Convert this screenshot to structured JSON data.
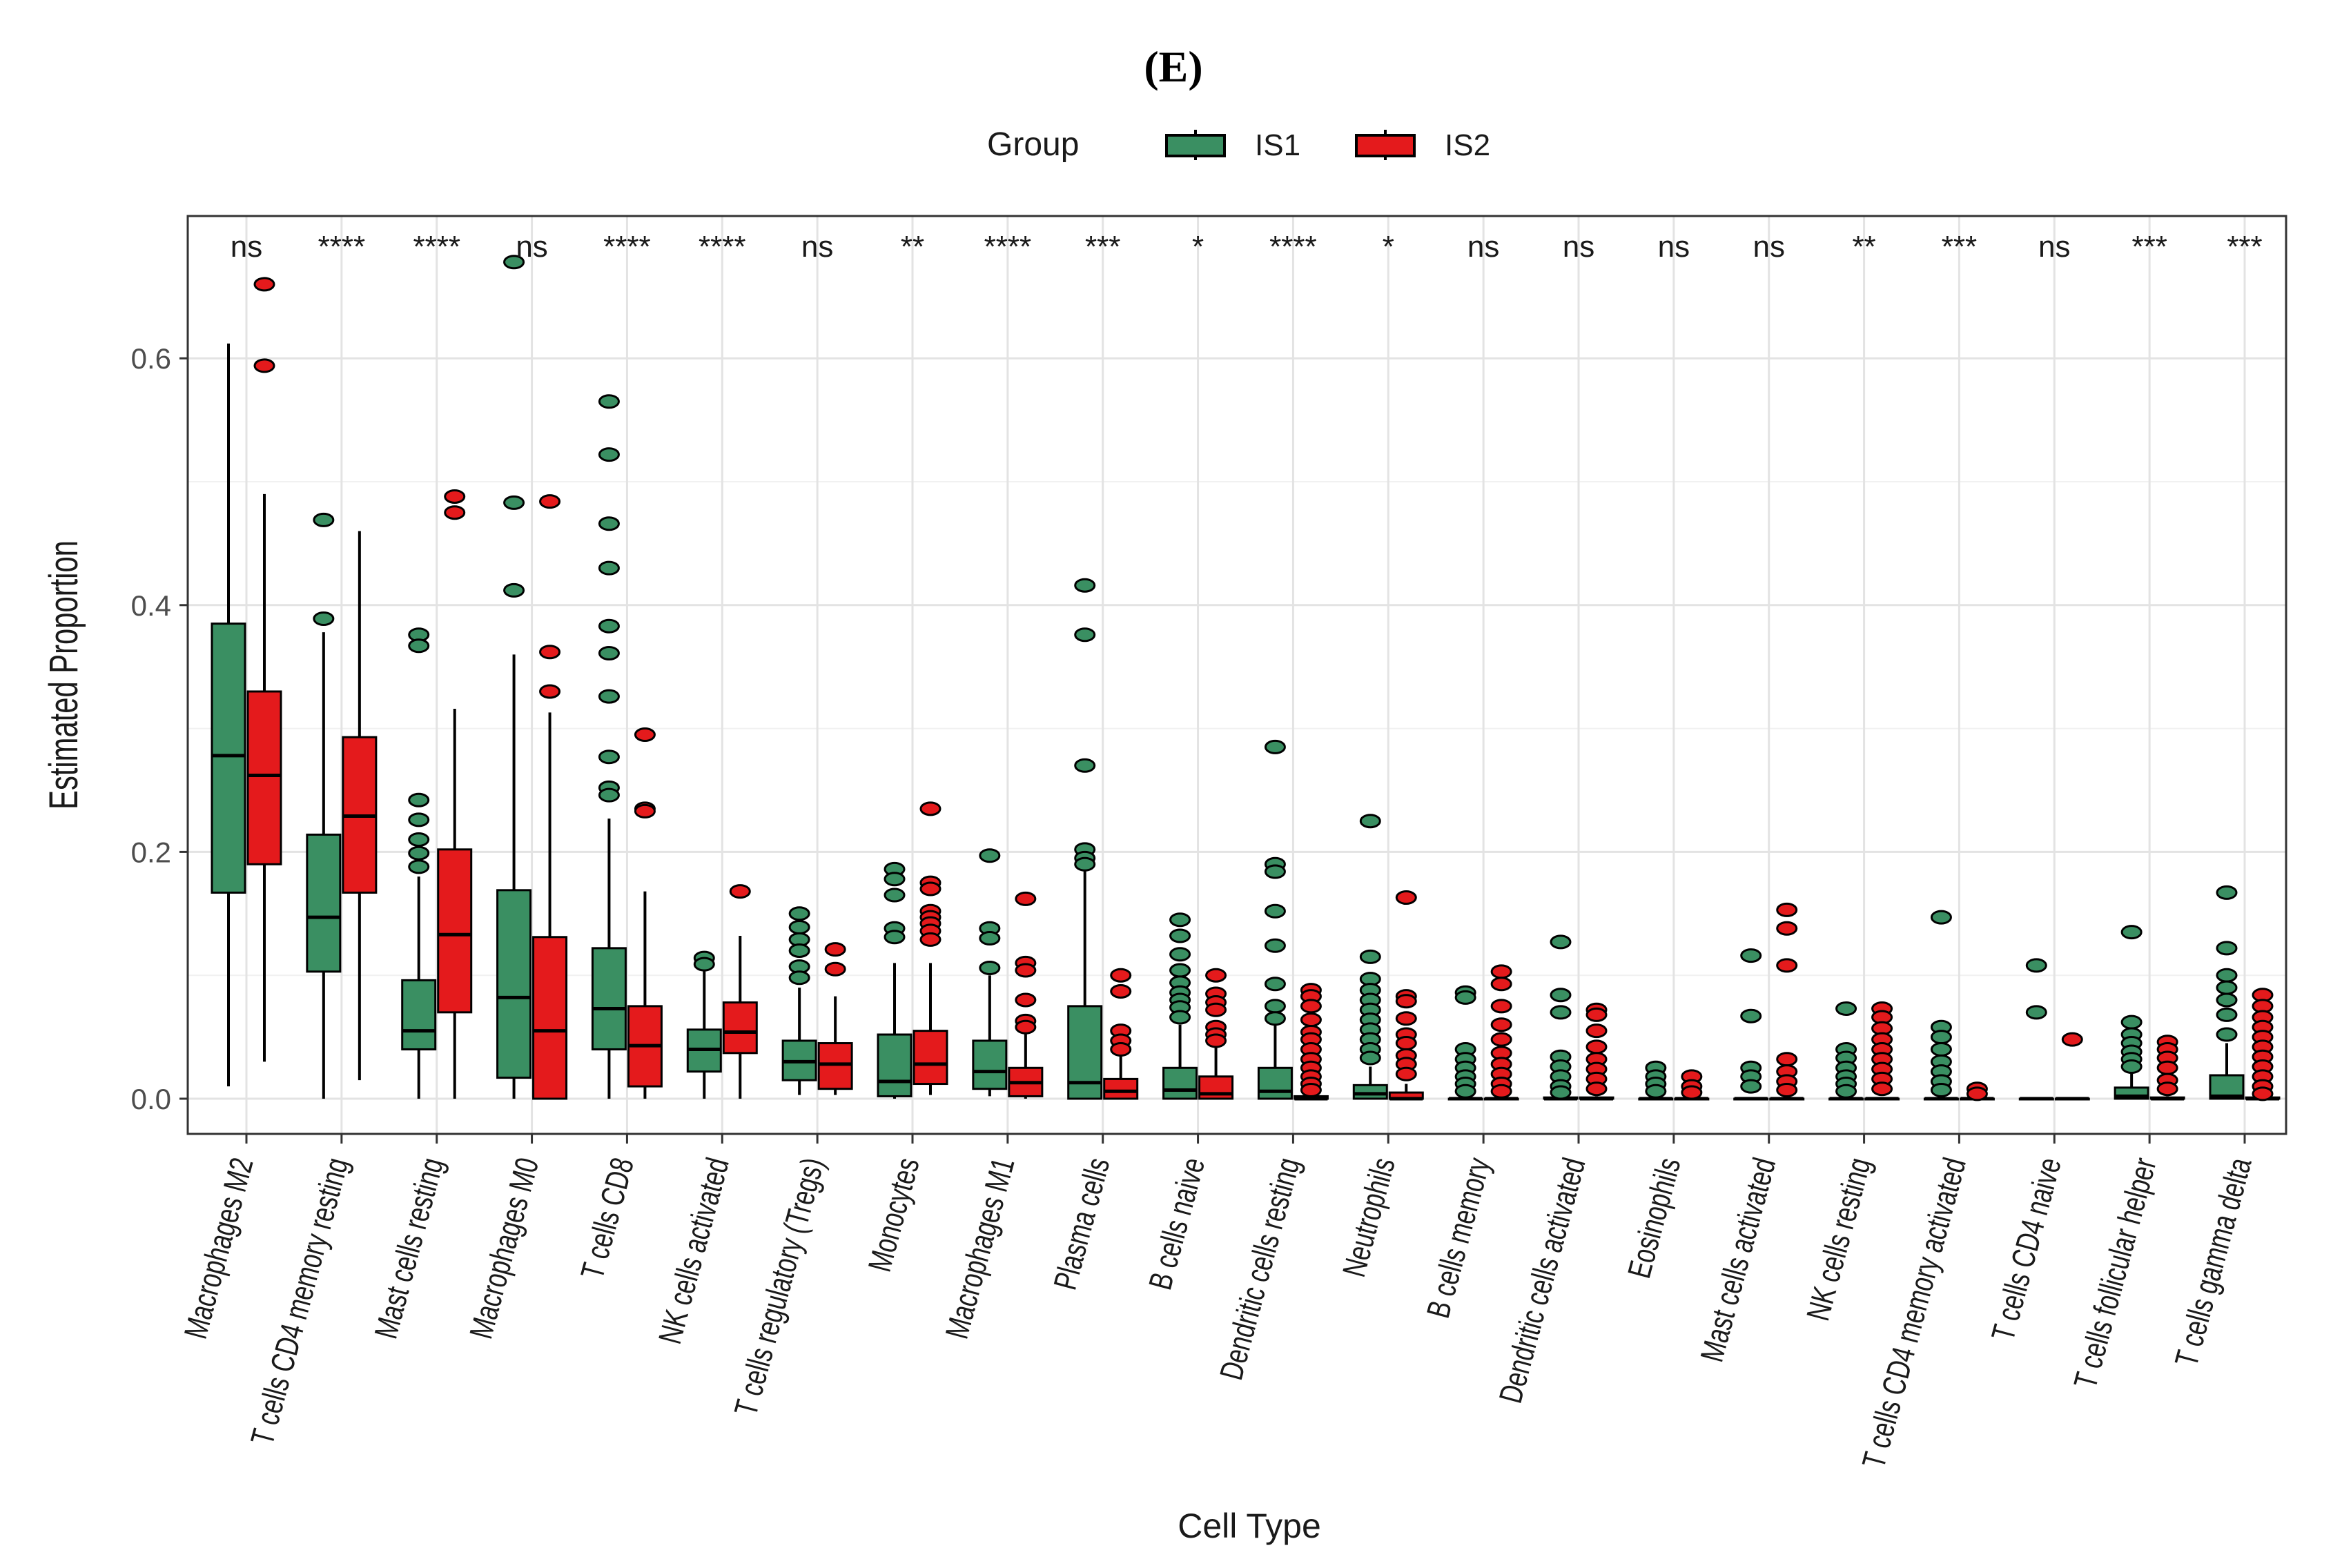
{
  "panel_label": "(E)",
  "legend": {
    "title": "Group",
    "items": [
      {
        "label": "IS1",
        "color": "#3a8f62"
      },
      {
        "label": "IS2",
        "color": "#e41a1c"
      }
    ]
  },
  "chart_data": {
    "type": "boxplot",
    "title": "",
    "xlabel": "Cell Type",
    "ylabel": "Estimated Proportion",
    "ylim": [
      -0.035,
      0.7
    ],
    "yticks": [
      0.0,
      0.2,
      0.4,
      0.6
    ],
    "ytick_labels": [
      "0.0",
      "0.2",
      "0.4",
      "0.6"
    ],
    "grid": true,
    "legend_position": "top",
    "series_names": [
      "IS1",
      "IS2"
    ],
    "categories": [
      {
        "name": "Macrophages M2",
        "sig": "ns",
        "IS1": {
          "whisker_low": 0.01,
          "q1": 0.167,
          "median": 0.278,
          "q3": 0.385,
          "whisker_high": 0.612,
          "outliers": []
        },
        "IS2": {
          "whisker_low": 0.03,
          "q1": 0.19,
          "median": 0.262,
          "q3": 0.33,
          "whisker_high": 0.49,
          "outliers": [
            0.66,
            0.594
          ]
        }
      },
      {
        "name": "T cells CD4 memory resting",
        "sig": "****",
        "IS1": {
          "whisker_low": 0.0,
          "q1": 0.103,
          "median": 0.147,
          "q3": 0.214,
          "whisker_high": 0.378,
          "outliers": [
            0.469,
            0.389
          ]
        },
        "IS2": {
          "whisker_low": 0.015,
          "q1": 0.167,
          "median": 0.229,
          "q3": 0.293,
          "whisker_high": 0.46,
          "outliers": []
        }
      },
      {
        "name": "Mast cells resting",
        "sig": "****",
        "IS1": {
          "whisker_low": 0.0,
          "q1": 0.04,
          "median": 0.055,
          "q3": 0.096,
          "whisker_high": 0.18,
          "outliers": [
            0.376,
            0.367,
            0.242,
            0.226,
            0.21,
            0.199,
            0.188
          ]
        },
        "IS2": {
          "whisker_low": 0.0,
          "q1": 0.07,
          "median": 0.133,
          "q3": 0.202,
          "whisker_high": 0.316,
          "outliers": [
            0.488,
            0.475
          ]
        }
      },
      {
        "name": "Macrophages M0",
        "sig": "ns",
        "IS1": {
          "whisker_low": 0.0,
          "q1": 0.017,
          "median": 0.082,
          "q3": 0.169,
          "whisker_high": 0.36,
          "outliers": [
            0.678,
            0.483,
            0.412
          ]
        },
        "IS2": {
          "whisker_low": 0.0,
          "q1": 0.0,
          "median": 0.055,
          "q3": 0.131,
          "whisker_high": 0.313,
          "outliers": [
            0.484,
            0.362,
            0.33
          ]
        }
      },
      {
        "name": "T cells CD8",
        "sig": "****",
        "IS1": {
          "whisker_low": 0.0,
          "q1": 0.04,
          "median": 0.073,
          "q3": 0.122,
          "whisker_high": 0.227,
          "outliers": [
            0.565,
            0.522,
            0.466,
            0.43,
            0.383,
            0.361,
            0.326,
            0.277,
            0.252,
            0.246
          ]
        },
        "IS2": {
          "whisker_low": 0.0,
          "q1": 0.01,
          "median": 0.043,
          "q3": 0.075,
          "whisker_high": 0.168,
          "outliers": [
            0.295,
            0.235,
            0.233
          ]
        }
      },
      {
        "name": "NK cells activated",
        "sig": "****",
        "IS1": {
          "whisker_low": 0.0,
          "q1": 0.022,
          "median": 0.04,
          "q3": 0.056,
          "whisker_high": 0.105,
          "outliers": [
            0.114,
            0.109
          ]
        },
        "IS2": {
          "whisker_low": 0.0,
          "q1": 0.037,
          "median": 0.054,
          "q3": 0.078,
          "whisker_high": 0.132,
          "outliers": [
            0.168
          ]
        }
      },
      {
        "name": "T cells regulatory (Tregs)",
        "sig": "ns",
        "IS1": {
          "whisker_low": 0.003,
          "q1": 0.015,
          "median": 0.03,
          "q3": 0.047,
          "whisker_high": 0.09,
          "outliers": [
            0.15,
            0.139,
            0.129,
            0.12,
            0.107,
            0.098
          ]
        },
        "IS2": {
          "whisker_low": 0.003,
          "q1": 0.008,
          "median": 0.028,
          "q3": 0.045,
          "whisker_high": 0.083,
          "outliers": [
            0.121,
            0.105
          ]
        }
      },
      {
        "name": "Monocytes",
        "sig": "**",
        "IS1": {
          "whisker_low": 0.0,
          "q1": 0.002,
          "median": 0.014,
          "q3": 0.052,
          "whisker_high": 0.11,
          "outliers": [
            0.186,
            0.178,
            0.165,
            0.138,
            0.131
          ]
        },
        "IS2": {
          "whisker_low": 0.003,
          "q1": 0.012,
          "median": 0.028,
          "q3": 0.055,
          "whisker_high": 0.11,
          "outliers": [
            0.235,
            0.175,
            0.17,
            0.152,
            0.147,
            0.142,
            0.136,
            0.129
          ]
        }
      },
      {
        "name": "Macrophages M1",
        "sig": "****",
        "IS1": {
          "whisker_low": 0.002,
          "q1": 0.008,
          "median": 0.022,
          "q3": 0.047,
          "whisker_high": 0.1,
          "outliers": [
            0.197,
            0.138,
            0.13,
            0.106
          ]
        },
        "IS2": {
          "whisker_low": 0.0,
          "q1": 0.002,
          "median": 0.013,
          "q3": 0.025,
          "whisker_high": 0.055,
          "outliers": [
            0.162,
            0.11,
            0.104,
            0.08,
            0.063,
            0.058
          ]
        }
      },
      {
        "name": "Plasma cells",
        "sig": "***",
        "IS1": {
          "whisker_low": 0.0,
          "q1": 0.0,
          "median": 0.013,
          "q3": 0.075,
          "whisker_high": 0.185,
          "outliers": [
            0.416,
            0.376,
            0.27,
            0.202,
            0.195,
            0.19
          ]
        },
        "IS2": {
          "whisker_low": 0.0,
          "q1": 0.0,
          "median": 0.006,
          "q3": 0.016,
          "whisker_high": 0.038,
          "outliers": [
            0.1,
            0.087,
            0.055,
            0.047,
            0.04
          ]
        }
      },
      {
        "name": "B cells naive",
        "sig": "*",
        "IS1": {
          "whisker_low": 0.0,
          "q1": 0.0,
          "median": 0.007,
          "q3": 0.025,
          "whisker_high": 0.06,
          "outliers": [
            0.145,
            0.132,
            0.117,
            0.104,
            0.094,
            0.086,
            0.08,
            0.074,
            0.066
          ]
        },
        "IS2": {
          "whisker_low": 0.0,
          "q1": 0.0,
          "median": 0.004,
          "q3": 0.018,
          "whisker_high": 0.045,
          "outliers": [
            0.1,
            0.085,
            0.078,
            0.072,
            0.058,
            0.052,
            0.047
          ]
        }
      },
      {
        "name": "Dendritic cells resting",
        "sig": "****",
        "IS1": {
          "whisker_low": 0.0,
          "q1": 0.0,
          "median": 0.006,
          "q3": 0.025,
          "whisker_high": 0.06,
          "outliers": [
            0.285,
            0.19,
            0.184,
            0.152,
            0.124,
            0.093,
            0.075,
            0.065
          ]
        },
        "IS2": {
          "whisker_low": 0.0,
          "q1": 0.0,
          "median": 0.0,
          "q3": 0.002,
          "whisker_high": 0.004,
          "outliers": [
            0.088,
            0.083,
            0.075,
            0.064,
            0.054,
            0.048,
            0.04,
            0.032,
            0.025,
            0.018,
            0.012,
            0.007
          ]
        }
      },
      {
        "name": "Neutrophils",
        "sig": "*",
        "IS1": {
          "whisker_low": 0.0,
          "q1": 0.0,
          "median": 0.004,
          "q3": 0.011,
          "whisker_high": 0.026,
          "outliers": [
            0.225,
            0.115,
            0.097,
            0.088,
            0.08,
            0.072,
            0.064,
            0.056,
            0.048,
            0.04,
            0.033
          ]
        },
        "IS2": {
          "whisker_low": 0.0,
          "q1": 0.0,
          "median": 0.0,
          "q3": 0.005,
          "whisker_high": 0.012,
          "outliers": [
            0.163,
            0.083,
            0.079,
            0.065,
            0.052,
            0.045,
            0.035,
            0.028,
            0.02
          ]
        }
      },
      {
        "name": "B cells memory",
        "sig": "ns",
        "IS1": {
          "whisker_low": 0.0,
          "q1": 0.0,
          "median": 0.0,
          "q3": 0.0,
          "whisker_high": 0.0,
          "outliers": [
            0.086,
            0.082,
            0.04,
            0.032,
            0.025,
            0.018,
            0.012,
            0.006
          ]
        },
        "IS2": {
          "whisker_low": 0.0,
          "q1": 0.0,
          "median": 0.0,
          "q3": 0.0,
          "whisker_high": 0.0,
          "outliers": [
            0.103,
            0.093,
            0.075,
            0.06,
            0.048,
            0.037,
            0.028,
            0.02,
            0.012,
            0.006
          ]
        }
      },
      {
        "name": "Dendritic cells activated",
        "sig": "ns",
        "IS1": {
          "whisker_low": 0.0,
          "q1": 0.0,
          "median": 0.0,
          "q3": 0.001,
          "whisker_high": 0.002,
          "outliers": [
            0.127,
            0.084,
            0.07,
            0.034,
            0.026,
            0.018,
            0.01,
            0.005
          ]
        },
        "IS2": {
          "whisker_low": 0.0,
          "q1": 0.0,
          "median": 0.0,
          "q3": 0.001,
          "whisker_high": 0.002,
          "outliers": [
            0.072,
            0.068,
            0.055,
            0.042,
            0.032,
            0.024,
            0.016,
            0.008
          ]
        }
      },
      {
        "name": "Eosinophils",
        "sig": "ns",
        "IS1": {
          "whisker_low": 0.0,
          "q1": 0.0,
          "median": 0.0,
          "q3": 0.0,
          "whisker_high": 0.0,
          "outliers": [
            0.025,
            0.018,
            0.012,
            0.006
          ]
        },
        "IS2": {
          "whisker_low": 0.0,
          "q1": 0.0,
          "median": 0.0,
          "q3": 0.0,
          "whisker_high": 0.0,
          "outliers": [
            0.018,
            0.01,
            0.005
          ]
        }
      },
      {
        "name": "Mast cells activated",
        "sig": "ns",
        "IS1": {
          "whisker_low": 0.0,
          "q1": 0.0,
          "median": 0.0,
          "q3": 0.0,
          "whisker_high": 0.0,
          "outliers": [
            0.116,
            0.067,
            0.025,
            0.018,
            0.01
          ]
        },
        "IS2": {
          "whisker_low": 0.0,
          "q1": 0.0,
          "median": 0.0,
          "q3": 0.0,
          "whisker_high": 0.0,
          "outliers": [
            0.153,
            0.138,
            0.108,
            0.032,
            0.022,
            0.014,
            0.007
          ]
        }
      },
      {
        "name": "NK cells resting",
        "sig": "**",
        "IS1": {
          "whisker_low": 0.0,
          "q1": 0.0,
          "median": 0.0,
          "q3": 0.0,
          "whisker_high": 0.0,
          "outliers": [
            0.073,
            0.04,
            0.033,
            0.025,
            0.018,
            0.012,
            0.006
          ]
        },
        "IS2": {
          "whisker_low": 0.0,
          "q1": 0.0,
          "median": 0.0,
          "q3": 0.0,
          "whisker_high": 0.0,
          "outliers": [
            0.073,
            0.066,
            0.057,
            0.048,
            0.04,
            0.032,
            0.024,
            0.016,
            0.008
          ]
        }
      },
      {
        "name": "T cells CD4 memory activated",
        "sig": "***",
        "IS1": {
          "whisker_low": 0.0,
          "q1": 0.0,
          "median": 0.0,
          "q3": 0.0,
          "whisker_high": 0.0,
          "outliers": [
            0.147,
            0.058,
            0.05,
            0.04,
            0.03,
            0.022,
            0.014,
            0.007
          ]
        },
        "IS2": {
          "whisker_low": 0.0,
          "q1": 0.0,
          "median": 0.0,
          "q3": 0.0,
          "whisker_high": 0.0,
          "outliers": [
            0.008,
            0.004
          ]
        }
      },
      {
        "name": "T cells CD4 naive",
        "sig": "ns",
        "IS1": {
          "whisker_low": 0.0,
          "q1": 0.0,
          "median": 0.0,
          "q3": 0.0,
          "whisker_high": 0.0,
          "outliers": [
            0.108,
            0.07
          ]
        },
        "IS2": {
          "whisker_low": 0.0,
          "q1": 0.0,
          "median": 0.0,
          "q3": 0.0,
          "whisker_high": 0.0,
          "outliers": [
            0.048
          ]
        }
      },
      {
        "name": "T cells follicular helper",
        "sig": "***",
        "IS1": {
          "whisker_low": 0.0,
          "q1": 0.0,
          "median": 0.002,
          "q3": 0.009,
          "whisker_high": 0.022,
          "outliers": [
            0.135,
            0.062,
            0.052,
            0.045,
            0.038,
            0.032,
            0.026
          ]
        },
        "IS2": {
          "whisker_low": 0.0,
          "q1": 0.0,
          "median": 0.0,
          "q3": 0.001,
          "whisker_high": 0.002,
          "outliers": [
            0.046,
            0.04,
            0.033,
            0.025,
            0.015,
            0.008
          ]
        }
      },
      {
        "name": "T cells gamma delta",
        "sig": "***",
        "IS1": {
          "whisker_low": 0.0,
          "q1": 0.0,
          "median": 0.002,
          "q3": 0.019,
          "whisker_high": 0.045,
          "outliers": [
            0.167,
            0.122,
            0.1,
            0.09,
            0.08,
            0.068,
            0.052
          ]
        },
        "IS2": {
          "whisker_low": 0.0,
          "q1": 0.0,
          "median": 0.0,
          "q3": 0.001,
          "whisker_high": 0.002,
          "outliers": [
            0.084,
            0.075,
            0.066,
            0.058,
            0.05,
            0.042,
            0.034,
            0.026,
            0.018,
            0.01,
            0.004
          ]
        }
      }
    ]
  }
}
